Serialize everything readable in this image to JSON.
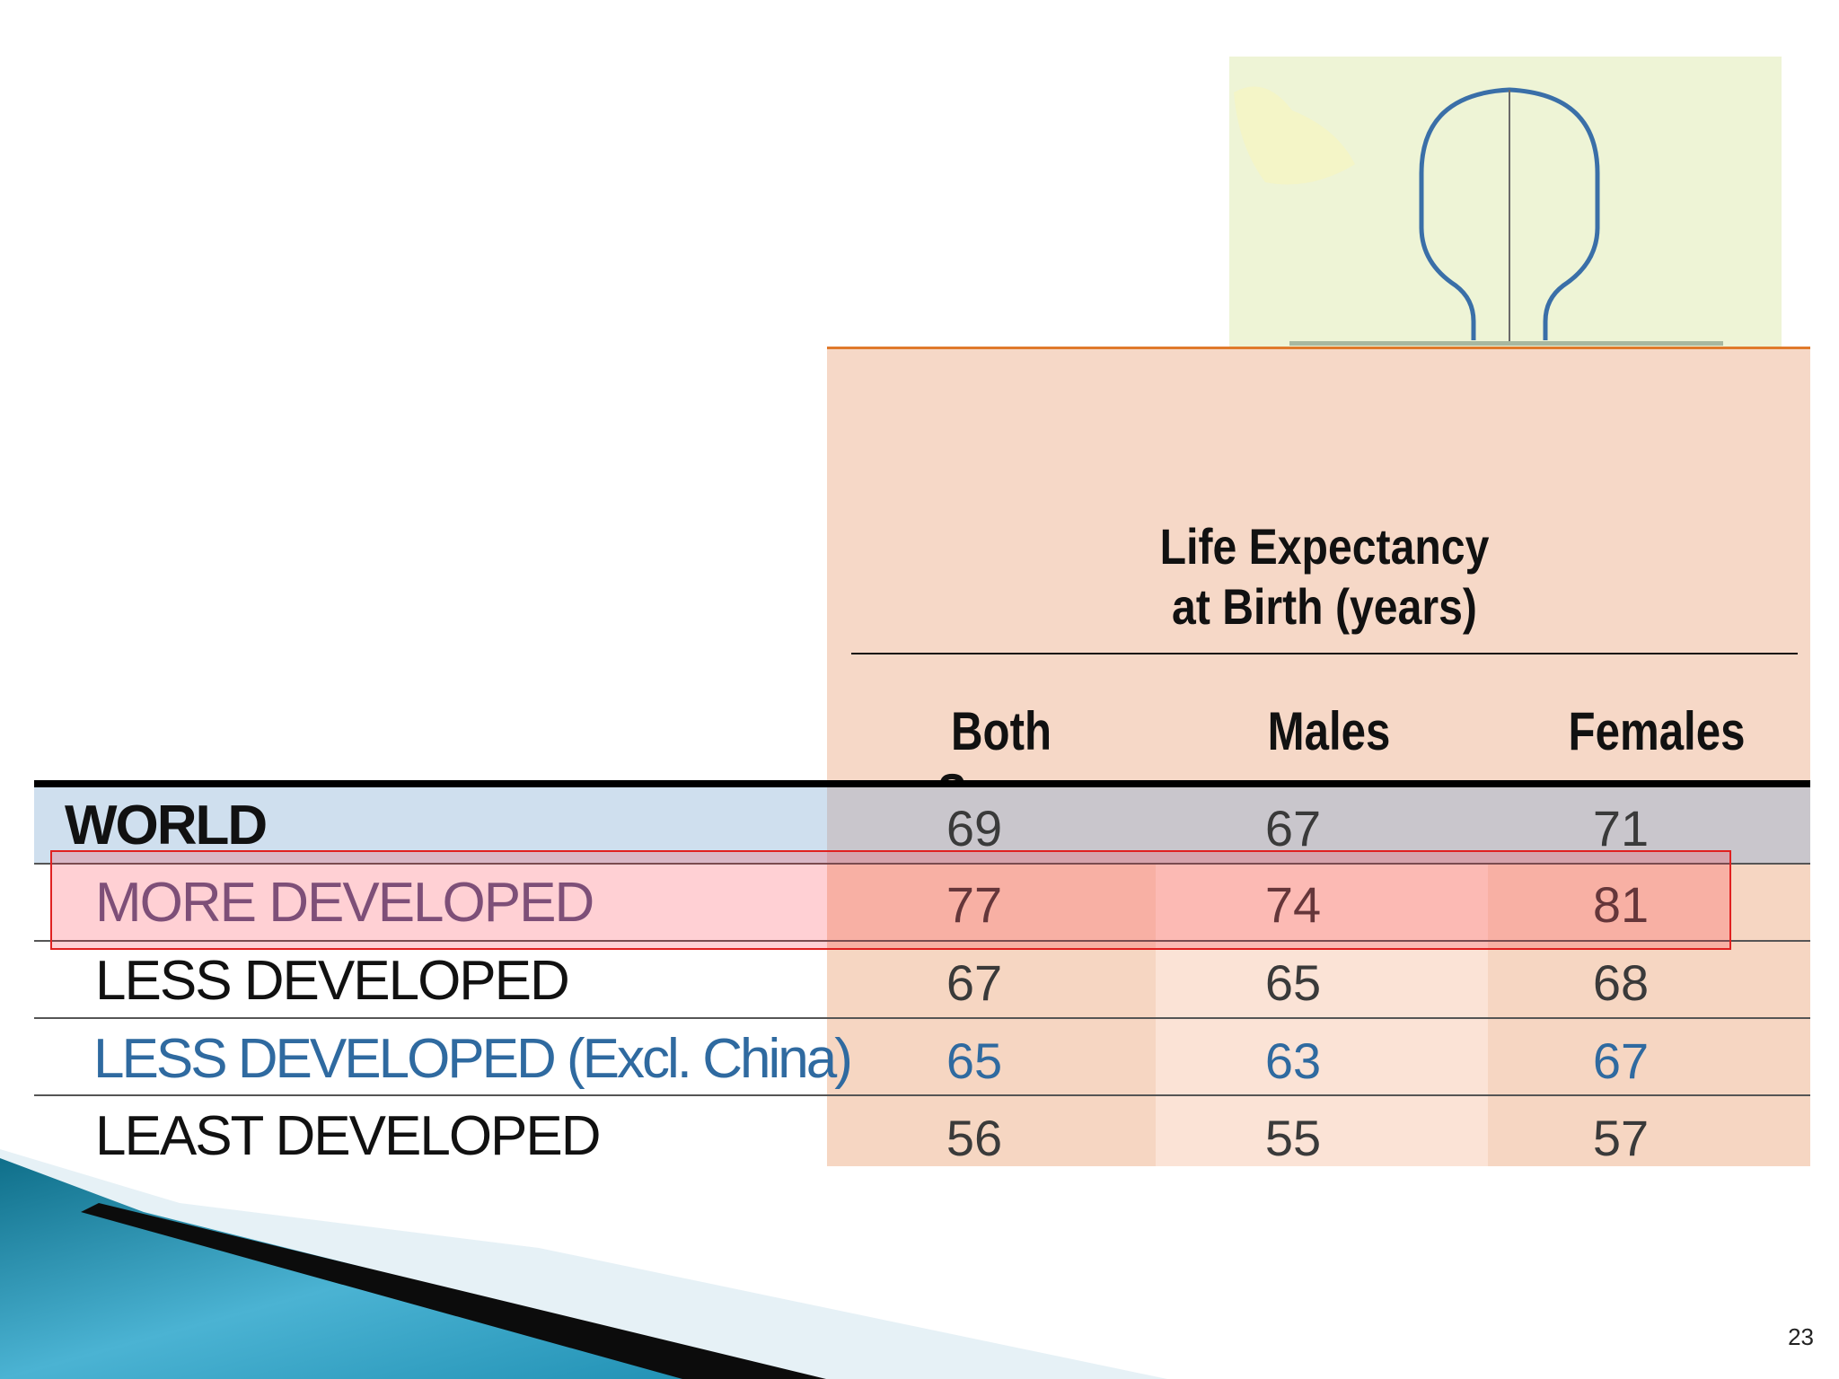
{
  "table": {
    "title_line1": "Life Expectancy",
    "title_line2": "at Birth (years)",
    "columns": [
      "Both Sexes",
      "Males",
      "Females"
    ],
    "rows": [
      {
        "label": "WORLD",
        "values": [
          "69",
          "67",
          "71"
        ],
        "label_color": "#111111"
      },
      {
        "label": "MORE DEVELOPED",
        "values": [
          "77",
          "74",
          "81"
        ],
        "label_color": "#5a5a8a"
      },
      {
        "label": "LESS DEVELOPED",
        "values": [
          "67",
          "65",
          "68"
        ],
        "label_color": "#111111"
      },
      {
        "label": "LESS DEVELOPED (Excl. China)",
        "values": [
          "65",
          "63",
          "67"
        ],
        "label_color": "#2f6aa0"
      },
      {
        "label": "LEAST DEVELOPED",
        "values": [
          "56",
          "55",
          "57"
        ],
        "label_color": "#111111"
      }
    ],
    "highlighted_row": "MORE DEVELOPED"
  },
  "slide": {
    "page_number": "23"
  },
  "colors": {
    "header_bg": "#f6d8c7",
    "accent_orange": "#e07a2c",
    "world_row_bg": "#cfdfee",
    "highlight_border": "#e02020"
  },
  "icons": {
    "illustration": "population-pyramid-icon",
    "decoration": "slide-corner-swoosh"
  }
}
